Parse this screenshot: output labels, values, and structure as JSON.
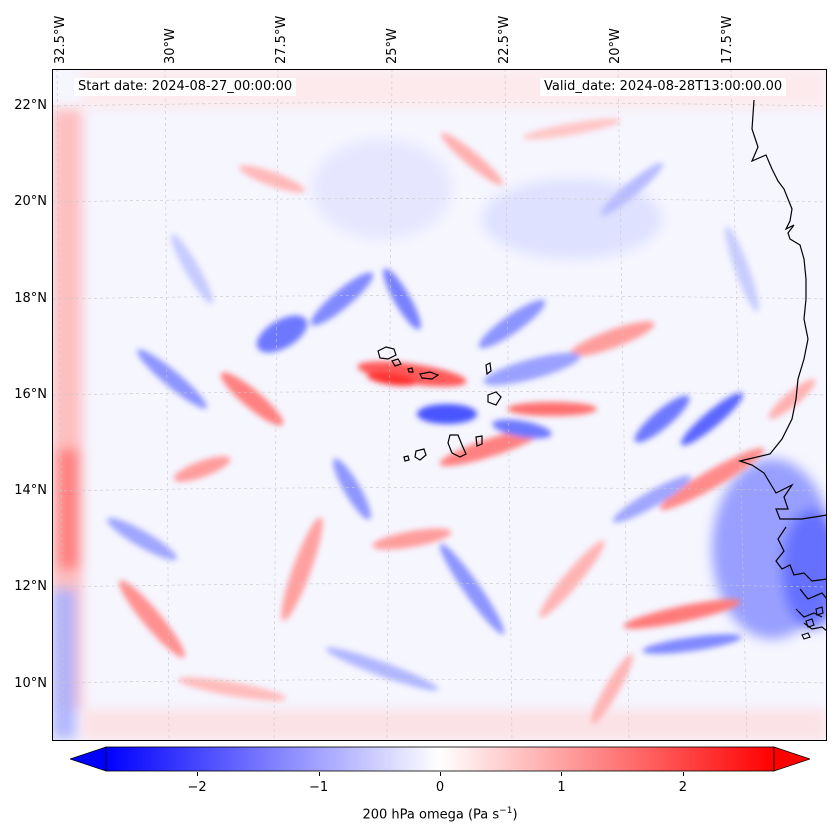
{
  "map": {
    "start_label": "Start date: 2024-08-27_00:00:00",
    "valid_label": "Valid_date: 2024-08-28T13:00:00.00",
    "lon_labels": [
      "32.5°W",
      "30°W",
      "27.5°W",
      "25°W",
      "22.5°W",
      "20°W",
      "17.5°W"
    ],
    "lat_labels": [
      "22°N",
      "20°N",
      "18°N",
      "16°N",
      "14°N",
      "12°N",
      "10°N"
    ],
    "field": "200 hPa omega",
    "region": "Cabo Verde and West African coast"
  },
  "colorbar": {
    "label_prefix": "200 hPa omega (Pa s",
    "label_sup": "−1",
    "label_suffix": ")",
    "ticks": [
      "−2",
      "−1",
      "0",
      "1",
      "2"
    ],
    "range": [
      -2.75,
      2.75
    ],
    "colormap": "bwr",
    "extend": "both",
    "color_neg": "#0000ff",
    "color_zero": "#ffffff",
    "color_pos": "#ff0000"
  },
  "gridlines": true
}
